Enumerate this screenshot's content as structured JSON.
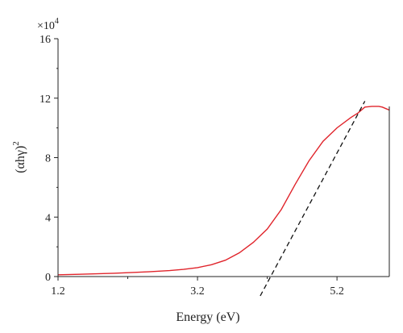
{
  "chart_data": {
    "type": "line",
    "title": "",
    "xlabel": "Energy (eV)",
    "ylabel_main": "(αhγ)",
    "ylabel_sup": "2",
    "y_multiplier": "×10",
    "y_multiplier_sup": "4",
    "xlim": [
      1.2,
      5.95
    ],
    "ylim": [
      0,
      16
    ],
    "x_ticks": [
      {
        "value": 1.2,
        "label": "1.2"
      },
      {
        "value": 3.2,
        "label": "3.2"
      },
      {
        "value": 5.2,
        "label": "5.2"
      }
    ],
    "y_ticks": [
      {
        "value": 0,
        "label": "0"
      },
      {
        "value": 4,
        "label": "4"
      },
      {
        "value": 8,
        "label": "8"
      },
      {
        "value": 12,
        "label": "12"
      },
      {
        "value": 16,
        "label": "16"
      }
    ],
    "grid": false,
    "series": [
      {
        "color": "#e0242b",
        "style": "solid",
        "x": [
          1.2,
          1.5,
          2.0,
          2.5,
          2.8,
          3.0,
          3.2,
          3.4,
          3.6,
          3.8,
          4.0,
          4.2,
          4.4,
          4.6,
          4.8,
          5.0,
          5.2,
          5.4,
          5.5,
          5.6,
          5.7,
          5.8,
          5.85,
          5.9,
          5.95
        ],
        "y": [
          0.12,
          0.15,
          0.22,
          0.32,
          0.4,
          0.48,
          0.6,
          0.8,
          1.1,
          1.6,
          2.3,
          3.2,
          4.5,
          6.2,
          7.8,
          9.1,
          10.0,
          10.7,
          11.0,
          11.4,
          11.45,
          11.45,
          11.4,
          11.3,
          11.2
        ]
      },
      {
        "color": "#111111",
        "style": "dashed",
        "x": [
          4.1,
          5.6
        ],
        "y": [
          -1.3,
          11.8
        ]
      }
    ]
  }
}
